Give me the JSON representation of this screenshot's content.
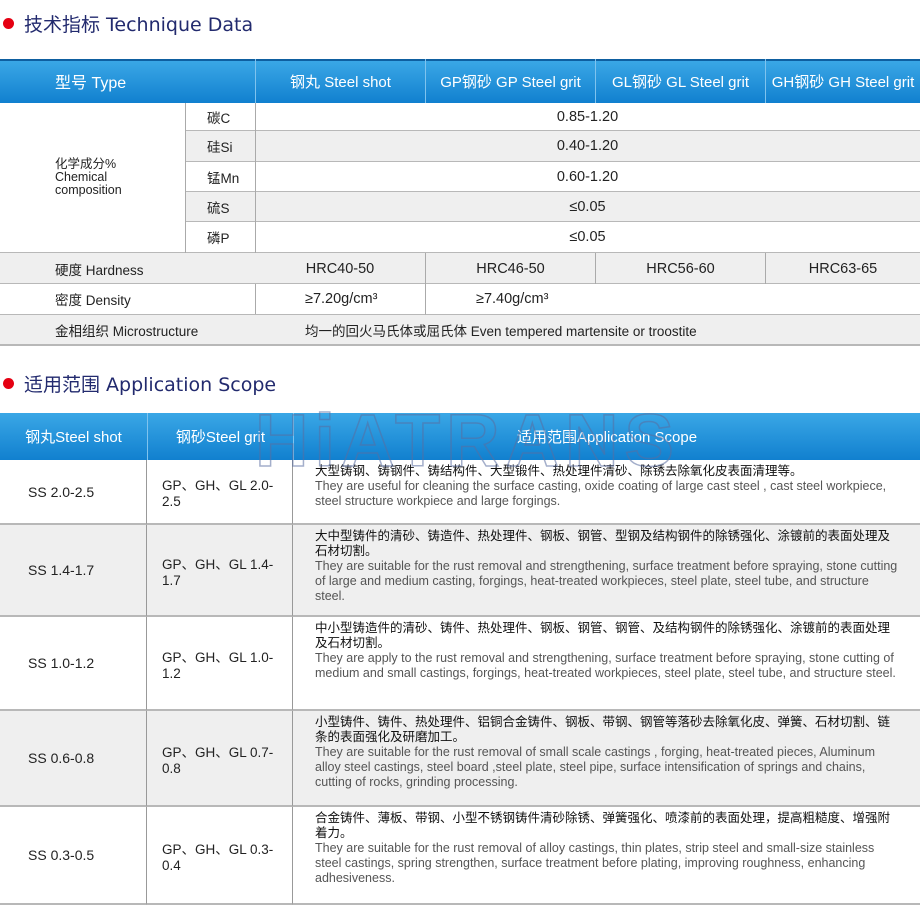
{
  "section1": {
    "title": "技术指标 Technique Data"
  },
  "tech_table": {
    "headers": [
      "型号  Type",
      "钢丸  Steel shot",
      "GP钢砂  GP Steel grit",
      "GL钢砂  GL Steel grit",
      "GH钢砂 GH Steel grit"
    ],
    "composition_label": [
      "化学成分%",
      "Chemical",
      "composition"
    ],
    "composition": [
      {
        "element": "碳C",
        "value": "0.85-1.20"
      },
      {
        "element": "硅Si",
        "value": "0.40-1.20"
      },
      {
        "element": "锰Mn",
        "value": "0.60-1.20"
      },
      {
        "element": "硫S",
        "value": "≤0.05"
      },
      {
        "element": "磷P",
        "value": "≤0.05"
      }
    ],
    "hardness": {
      "label": "硬度 Hardness",
      "values": [
        "HRC40-50",
        "HRC46-50",
        "HRC56-60",
        "HRC63-65"
      ]
    },
    "density": {
      "label": "密度 Density",
      "values": [
        "≥7.20g/cm³",
        "≥7.40g/cm³"
      ]
    },
    "microstructure": {
      "label": "金相组织  Microstructure",
      "value": "均一的回火马氏体或屈氏体  Even tempered martensite or troostite"
    }
  },
  "section2": {
    "title": "适用范围  Application Scope"
  },
  "app_table": {
    "headers": [
      "钢丸Steel shot",
      "钢砂Steel grit",
      "适用范围Application Scope"
    ],
    "rows": [
      {
        "shot": "SS 2.0-2.5",
        "grit": "GP、GH、GL 2.0-2.5",
        "cn": "大型铸钢、铸钢件、铸结构件、大型锻件、热处理件清砂、除锈去除氧化皮表面清理等。",
        "en": "They are useful for cleaning the surface casting, oxide coating of large cast steel  , cast steel workpiece, steel structure workpiece and large forgings."
      },
      {
        "shot": "SS 1.4-1.7",
        "grit": "GP、GH、GL 1.4-1.7",
        "cn": "大中型铸件的清砂、铸造件、热处理件、钢板、钢管、型钢及结构钢件的除锈强化、涂镀前的表面处理及石材切割。",
        "en": "They are suitable for the rust removal and strengthening, surface treatment before spraying, stone cutting of large and medium casting, forgings, heat-treated workpieces, steel plate, steel tube, and structure steel."
      },
      {
        "shot": "SS 1.0-1.2",
        "grit": "GP、GH、GL 1.0-1.2",
        "cn": "中小型铸造件的清砂、铸件、热处理件、钢板、钢管、钢管、及结构钢件的除锈强化、涂镀前的表面处理及石材切割。",
        "en": "They are apply to the rust removal and strengthening, surface treatment before spraying, stone cutting of medium and small castings, forgings, heat-treated workpieces, steel plate, steel tube, and structure steel."
      },
      {
        "shot": "SS 0.6-0.8",
        "grit": "GP、GH、GL 0.7-0.8",
        "cn": "小型铸件、铸件、热处理件、铝铜合金铸件、钢板、带钢、钢管等落砂去除氧化皮、弹簧、石材切割、链条的表面强化及研磨加工。",
        "en": "They are suitable for the rust removal of small scale castings , forging, heat-treated pieces, Aluminum alloy steel castings, steel board ,steel plate, steel pipe, surface intensification of springs and chains, cutting  of rocks, grinding processing."
      },
      {
        "shot": "SS 0.3-0.5",
        "grit": "GP、GH、GL 0.3-0.4",
        "cn": "合金铸件、薄板、带钢、小型不锈钢铸件清砂除锈、弹簧强化、喷漆前的表面处理，提高粗糙度、增强附着力。",
        "en": "They are suitable for the rust removal of alloy castings, thin plates, strip steel and small-size stainless steel castings, spring strengthen, surface treatment before plating, improving roughness, enhancing adhesiveness."
      }
    ]
  },
  "watermark": "HiATRANS",
  "colors": {
    "header_blue": "#1a8ad6",
    "bullet_red": "#e50012",
    "title_navy": "#222a6e"
  }
}
